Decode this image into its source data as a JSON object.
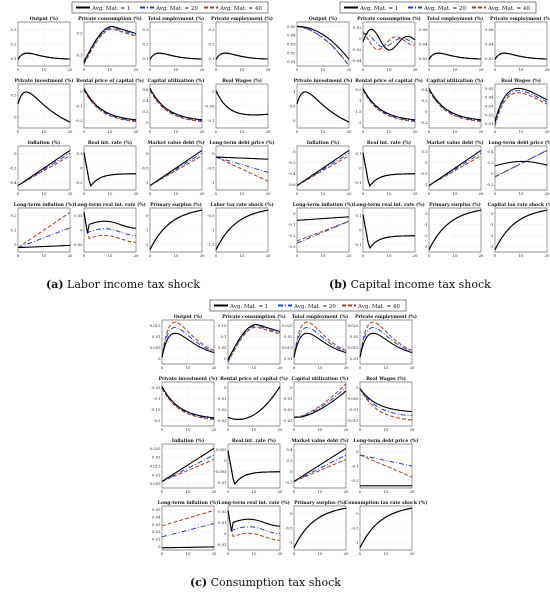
{
  "legend": {
    "series": [
      {
        "name": "Avg. Mat. = 1",
        "color": "#000000",
        "dash": "solid"
      },
      {
        "name": "Avg. Mat. = 20",
        "color": "#1f3fd6",
        "dash": "dashdot"
      },
      {
        "name": "Avg. Mat. = 40",
        "color": "#a0401a",
        "dash": "dashed"
      }
    ]
  },
  "panels": [
    {
      "caption_letter": "(a)",
      "caption_text": "Labor income tax shock",
      "xticks": [
        0,
        10,
        20
      ],
      "subplots": [
        {
          "title": "Output (%)",
          "yticks": [
            "0.3",
            "0.2",
            "0.1"
          ],
          "shape": "hump"
        },
        {
          "title": "Private consumption (%)",
          "yticks": [
            "0.2",
            "0.1"
          ],
          "shape": "hump_late"
        },
        {
          "title": "Total employment (%)",
          "yticks": [
            "0.3",
            "0.2",
            "0.1"
          ],
          "shape": "hump"
        },
        {
          "title": "Private employment (%)",
          "yticks": [
            "0.3",
            "0.2",
            "0.1"
          ],
          "shape": "hump"
        },
        {
          "title": "Private investment (%)",
          "yticks": [
            "0.5",
            "0"
          ],
          "shape": "hump_decline"
        },
        {
          "title": "Rental price of capital (%)",
          "yticks": [
            "0",
            "-0.1",
            "-0.2"
          ],
          "shape": "decline"
        },
        {
          "title": "Capital utilization (%)",
          "yticks": [
            "0.6",
            "0.4",
            "0.2",
            "0"
          ],
          "shape": "decline"
        },
        {
          "title": "Real Wages (%)",
          "yticks": [
            "0",
            "-0.05",
            "-0.1"
          ],
          "shape": "dip_recover"
        },
        {
          "title": "Inflation (%)",
          "yticks": [
            "0",
            "-0.2",
            "-0.4"
          ],
          "shape": "rise"
        },
        {
          "title": "Real int. rate (%)",
          "yticks": [
            "0.2",
            "0",
            "-0.2"
          ],
          "shape": "sharp_dip"
        },
        {
          "title": "Market value debt (%)",
          "yticks": [
            "0",
            "-0.5",
            "-1"
          ],
          "shape": "rise"
        },
        {
          "title": "Long-term debt price (%)",
          "yticks": [
            "0",
            "-0.5",
            "-1"
          ],
          "shape": "fan_down"
        },
        {
          "title": "Long-term inflation (%)",
          "yticks": [
            "0.2",
            "0.1",
            "0"
          ],
          "shape": "fan_up"
        },
        {
          "title": "Long-term real int. rate (%)",
          "yticks": [
            "0.05",
            "0",
            "-0.05"
          ],
          "shape": "dip_sep"
        },
        {
          "title": "Primary surplus (%)",
          "yticks": [
            "0",
            "-1",
            "-2"
          ],
          "shape": "rise_fast"
        },
        {
          "title": "Labor tax rate shock (%)",
          "yticks": [
            "-0.5",
            "-1",
            "-1.5"
          ],
          "shape": "rise_fast"
        }
      ]
    },
    {
      "caption_letter": "(b)",
      "caption_text": "Capital income tax shock",
      "xticks": [
        0,
        10,
        20
      ],
      "subplots": [
        {
          "title": "Output (%)",
          "yticks": [
            "0.05",
            "0.04",
            "0.03",
            "0.02",
            "0.01"
          ],
          "shape": "decline_late"
        },
        {
          "title": "Private consumption (%)",
          "yticks": [
            "0.02",
            "0",
            "-0.02",
            "-0.04"
          ],
          "shape": "wave"
        },
        {
          "title": "Total employment (%)",
          "yticks": [
            "0.06",
            "0.04",
            "0.02"
          ],
          "shape": "hump"
        },
        {
          "title": "Private employment (%)",
          "yticks": [
            "0.06",
            "0.04",
            "0.02"
          ],
          "shape": "hump"
        },
        {
          "title": "Private investment (%)",
          "yticks": [
            "1",
            "0.5",
            "0"
          ],
          "shape": "hump_decline"
        },
        {
          "title": "Rental price of capital (%)",
          "yticks": [
            "-0.5",
            "-1",
            "-1.5",
            "-2"
          ],
          "shape": "decline"
        },
        {
          "title": "Capital utilization (%)",
          "yticks": [
            "0.4",
            "0.2",
            "0",
            "-0.2"
          ],
          "shape": "decline"
        },
        {
          "title": "Real Wages (%)",
          "yticks": [
            "0.05",
            "0.04",
            "0.03",
            "0.02",
            "0.01"
          ],
          "shape": "late_hump"
        },
        {
          "title": "Inflation (%)",
          "yticks": [
            "0",
            "-0.2",
            "-0.4",
            "-0.6"
          ],
          "shape": "rise"
        },
        {
          "title": "Real int. rate (%)",
          "yticks": [
            "0.1",
            "0",
            "-0.1"
          ],
          "shape": "sharp_dip"
        },
        {
          "title": "Market value debt (%)",
          "yticks": [
            "0.5",
            "0",
            "-0.5",
            "-1"
          ],
          "shape": "rise"
        },
        {
          "title": "Long-term debt price (%)",
          "yticks": [
            "0.4",
            "0.2",
            "0",
            "-0.2"
          ],
          "shape": "arc_down"
        },
        {
          "title": "Long-term inflation (%)",
          "yticks": [
            "0",
            "-0.1",
            "-0.2",
            "-0.3"
          ],
          "shape": "fan_up_low"
        },
        {
          "title": "Long-term real int. rate (%)",
          "yticks": [
            "0.1",
            "0",
            "-0.1"
          ],
          "shape": "sharp_dip"
        },
        {
          "title": "Primary surplus (%)",
          "yticks": [
            "0",
            "-1",
            "-2",
            "-3"
          ],
          "shape": "rise_fast"
        },
        {
          "title": "Capital tax rate shock (%)",
          "yticks": [
            "0",
            "-1",
            "-2",
            "-3"
          ],
          "shape": "rise_fast"
        }
      ]
    },
    {
      "caption_letter": "(c)",
      "caption_text": "Consumption tax shock",
      "xticks": [
        0,
        10,
        20
      ],
      "subplots": [
        {
          "title": "Output (%)",
          "yticks": [
            "0.015",
            "0.01",
            "0.005",
            "0"
          ],
          "shape": "hump_sep"
        },
        {
          "title": "Private consumption (%)",
          "yticks": [
            "0.15",
            "0.1",
            "0.05",
            "0"
          ],
          "shape": "hump_late"
        },
        {
          "title": "Total employment (%)",
          "yticks": [
            "0.025",
            "0.02",
            "0.015",
            "0.01"
          ],
          "shape": "hump_sep"
        },
        {
          "title": "Private employment (%)",
          "yticks": [
            "0.025",
            "0.02",
            "0.015",
            "0.01"
          ],
          "shape": "hump_sep"
        },
        {
          "title": "Private investment (%)",
          "yticks": [
            "-0.05",
            "-0.1",
            "-0.15",
            "-0.2"
          ],
          "shape": "decline"
        },
        {
          "title": "Rental price of capital (%)",
          "yticks": [
            "0",
            "-0.01",
            "-0.02",
            "-0.03"
          ],
          "shape": "u_shape"
        },
        {
          "title": "Capital utilization (%)",
          "yticks": [
            "0",
            "-0.01",
            "-0.02",
            "-0.03"
          ],
          "shape": "u_rise"
        },
        {
          "title": "Real Wages (%)",
          "yticks": [
            "0",
            "-0.005",
            "-0.01",
            "-0.015"
          ],
          "shape": "decline_sep"
        },
        {
          "title": "Inflation (%)",
          "yticks": [
            "0.025",
            "0.02",
            "0.015",
            "0.01",
            "0.005"
          ],
          "shape": "rise_sep"
        },
        {
          "title": "Real int. rate (%)",
          "yticks": [
            "0.005",
            "0",
            "-0.005",
            "-0.01"
          ],
          "shape": "sharp_dip"
        },
        {
          "title": "Market value debt (%)",
          "yticks": [
            "0.4",
            "0.2",
            "0",
            "-0.2"
          ],
          "shape": "rise_sep"
        },
        {
          "title": "Long-term debt price (%)",
          "yticks": [
            "0",
            "-0.1",
            "-0.2"
          ],
          "shape": "fan_down_only"
        },
        {
          "title": "Long-term inflation (%)",
          "yticks": [
            "0.05",
            "0.04",
            "0.03",
            "0.02",
            "0.01",
            "0"
          ],
          "shape": "fan_up_c"
        },
        {
          "title": "Long-term real int. rate (%)",
          "yticks": [
            "0.02",
            "0.01",
            "0",
            "-0.01"
          ],
          "shape": "dip_sep"
        },
        {
          "title": "Primary surplus (%)",
          "yticks": [
            "0",
            "-0.5",
            "-1"
          ],
          "shape": "rise_fast"
        },
        {
          "title": "Consumption tax rate shock (%)",
          "yticks": [
            "0",
            "-0.5",
            "-1"
          ],
          "shape": "rise_fast"
        }
      ]
    }
  ]
}
